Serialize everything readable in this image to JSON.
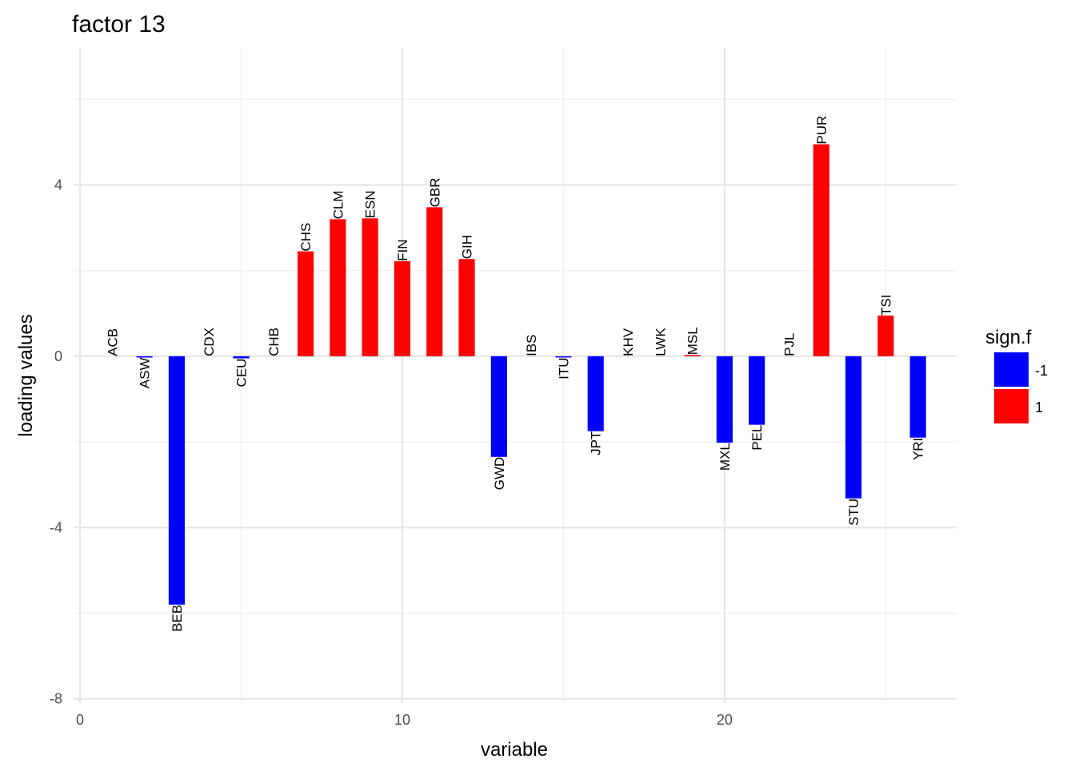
{
  "chart_data": {
    "type": "bar",
    "title": "factor 13",
    "xlabel": "variable",
    "ylabel": "loading values",
    "xlim": [
      -0.2,
      27.2
    ],
    "ylim": [
      -8.1,
      7.2
    ],
    "x_ticks": [
      0,
      10,
      20
    ],
    "y_ticks": [
      -8,
      -4,
      0,
      4
    ],
    "x_minor_ticks": [
      5,
      15,
      25
    ],
    "y_minor_ticks": [
      -6,
      -2,
      2,
      6
    ],
    "grid": true,
    "legend": {
      "title": "sign.f",
      "position": "right",
      "entries": [
        {
          "label": "-1",
          "color": "#0000FF"
        },
        {
          "label": "1",
          "color": "#FF0000"
        }
      ]
    },
    "colors": {
      "negative": "#0000FF",
      "positive": "#FF0000"
    },
    "bars": [
      {
        "x": 1,
        "label": "ACB",
        "value": 0.0,
        "sign": "1"
      },
      {
        "x": 2,
        "label": "ASW",
        "value": -0.03,
        "sign": "-1"
      },
      {
        "x": 3,
        "label": "BEB",
        "value": -5.8,
        "sign": "-1"
      },
      {
        "x": 4,
        "label": "CDX",
        "value": 0.0,
        "sign": "1"
      },
      {
        "x": 5,
        "label": "CEU",
        "value": -0.05,
        "sign": "-1"
      },
      {
        "x": 6,
        "label": "CHB",
        "value": 0.0,
        "sign": "1"
      },
      {
        "x": 7,
        "label": "CHS",
        "value": 2.45,
        "sign": "1"
      },
      {
        "x": 8,
        "label": "CLM",
        "value": 3.2,
        "sign": "1"
      },
      {
        "x": 9,
        "label": "ESN",
        "value": 3.22,
        "sign": "1"
      },
      {
        "x": 10,
        "label": "FIN",
        "value": 2.22,
        "sign": "1"
      },
      {
        "x": 11,
        "label": "GBR",
        "value": 3.48,
        "sign": "1"
      },
      {
        "x": 12,
        "label": "GIH",
        "value": 2.27,
        "sign": "1"
      },
      {
        "x": 13,
        "label": "GWD",
        "value": -2.35,
        "sign": "-1"
      },
      {
        "x": 14,
        "label": "IBS",
        "value": 0.0,
        "sign": "1"
      },
      {
        "x": 15,
        "label": "ITU",
        "value": -0.03,
        "sign": "-1"
      },
      {
        "x": 16,
        "label": "JPT",
        "value": -1.75,
        "sign": "-1"
      },
      {
        "x": 17,
        "label": "KHV",
        "value": 0.0,
        "sign": "-1"
      },
      {
        "x": 18,
        "label": "LWK",
        "value": 0.0,
        "sign": "1"
      },
      {
        "x": 19,
        "label": "MSL",
        "value": 0.03,
        "sign": "1"
      },
      {
        "x": 20,
        "label": "MXL",
        "value": -2.02,
        "sign": "-1"
      },
      {
        "x": 21,
        "label": "PEL",
        "value": -1.6,
        "sign": "-1"
      },
      {
        "x": 22,
        "label": "PJL",
        "value": 0.0,
        "sign": "1"
      },
      {
        "x": 23,
        "label": "PUR",
        "value": 4.95,
        "sign": "1"
      },
      {
        "x": 24,
        "label": "STU",
        "value": -3.32,
        "sign": "-1"
      },
      {
        "x": 25,
        "label": "TSI",
        "value": 0.95,
        "sign": "1"
      },
      {
        "x": 26,
        "label": "YRI",
        "value": -1.9,
        "sign": "-1"
      }
    ]
  }
}
